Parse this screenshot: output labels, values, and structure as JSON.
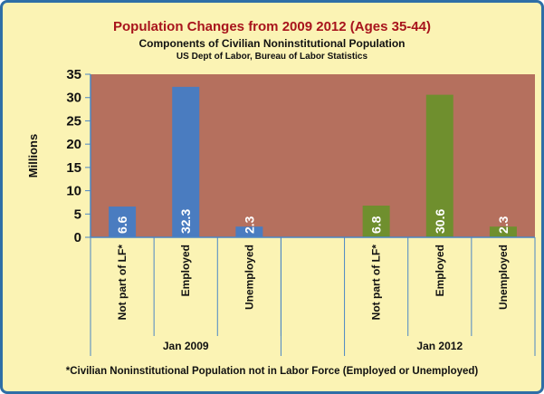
{
  "colors": {
    "background": "#fbf3b4",
    "plot_area": "#b5705e",
    "border": "#2e6ea6",
    "title": "#a8141c",
    "series_2009": "#4a7cc0",
    "series_2012": "#6f8f2e",
    "axis": "#4a86c5"
  },
  "chart_data": {
    "type": "bar",
    "title": "Population Changes  from 2009 2012 (Ages 35-44)",
    "subtitle": "Components of Civilian Noninstitutional Population",
    "source": "US Dept of Labor, Bureau of Labor Statistics",
    "ylabel": "Millions",
    "xlabel": "",
    "ylim": [
      0,
      35
    ],
    "yticks": [
      0,
      5,
      10,
      15,
      20,
      25,
      30,
      35
    ],
    "grid": false,
    "categories": [
      "Not part of LF*",
      "Employed",
      "Unemployed",
      "",
      "Not part of LF*",
      "Employed",
      "Unemployed"
    ],
    "groups": [
      {
        "label": "Jan 2009",
        "category_indices": [
          0,
          1,
          2
        ]
      },
      {
        "label": "Jan 2012",
        "category_indices": [
          4,
          5,
          6
        ]
      }
    ],
    "series": [
      {
        "values": [
          6.6,
          32.3,
          2.3,
          null,
          null,
          null,
          null
        ],
        "color": "#4a7cc0"
      },
      {
        "values": [
          null,
          null,
          null,
          null,
          6.8,
          30.6,
          2.3
        ],
        "color": "#6f8f2e"
      }
    ],
    "data_labels": [
      "6.6",
      "32.3",
      "2.3",
      "",
      "6.8",
      "30.6",
      "2.3"
    ],
    "footnote": "*Civilian Noninstitutional Population not in Labor Force (Employed or Unemployed)"
  }
}
